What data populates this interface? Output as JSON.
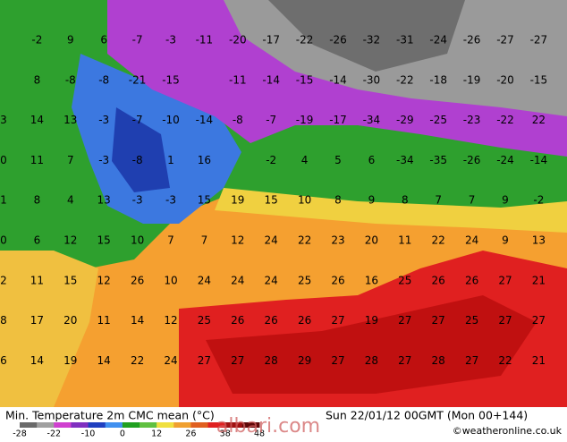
{
  "map": {
    "title": "Min. Temperature 2m CMC mean (°C)",
    "timestamp": "Sun 22/01/12 00GMT (Mon 00+144)",
    "credit": "©weatheronline.co.uk",
    "watermark": "albari.com",
    "legend": [
      "-28",
      "-22",
      "-10",
      "0",
      "12",
      "26",
      "38",
      "48"
    ],
    "rows": [
      [
        null,
        "-2",
        "9",
        "6",
        "-7",
        "-3",
        "-11",
        "-20",
        "-17",
        "-22",
        "-26",
        "-32",
        "-31",
        "-24",
        "-26",
        "-27",
        "-27",
        "-2"
      ],
      [
        null,
        "8",
        "-8",
        "-8",
        "-21",
        "-15",
        null,
        "-11",
        "-14",
        "-15",
        "-14",
        "-30",
        "-22",
        "-18",
        "-19",
        "-20",
        "-15",
        "-1"
      ],
      [
        "3",
        "14",
        "13",
        "-3",
        "-7",
        "-10",
        "-14",
        "-8",
        "-7",
        "-19",
        "-17",
        "-34",
        "-29",
        "-25",
        "-23",
        "-22",
        "22",
        null
      ],
      [
        "0",
        "11",
        "7",
        "-3",
        "-8",
        "1",
        "16",
        null,
        "-2",
        "4",
        "5",
        "6",
        "-34",
        "-35",
        "-26",
        "-24",
        "-14",
        null
      ],
      [
        "1",
        "8",
        "4",
        "13",
        "-3",
        "-3",
        "15",
        "19",
        "15",
        "10",
        "8",
        "9",
        "8",
        "7",
        "7",
        "9",
        "-2",
        null
      ],
      [
        "0",
        "6",
        "12",
        "15",
        "10",
        "7",
        "7",
        "12",
        "24",
        "22",
        "23",
        "20",
        "11",
        "22",
        "24",
        "9",
        "13",
        "1"
      ],
      [
        "2",
        "11",
        "15",
        "12",
        "26",
        "10",
        "24",
        "24",
        "24",
        "25",
        "26",
        "16",
        "25",
        "26",
        "26",
        "27",
        "21",
        "1"
      ],
      [
        "8",
        "17",
        "20",
        "11",
        "14",
        "12",
        "25",
        "26",
        "26",
        "26",
        "27",
        "19",
        "27",
        "27",
        "25",
        "27",
        "27",
        null
      ],
      [
        "6",
        "14",
        "19",
        "14",
        "22",
        "24",
        "27",
        "27",
        "28",
        "29",
        "27",
        "28",
        "27",
        "28",
        "27",
        "22",
        "21",
        "2"
      ]
    ]
  }
}
